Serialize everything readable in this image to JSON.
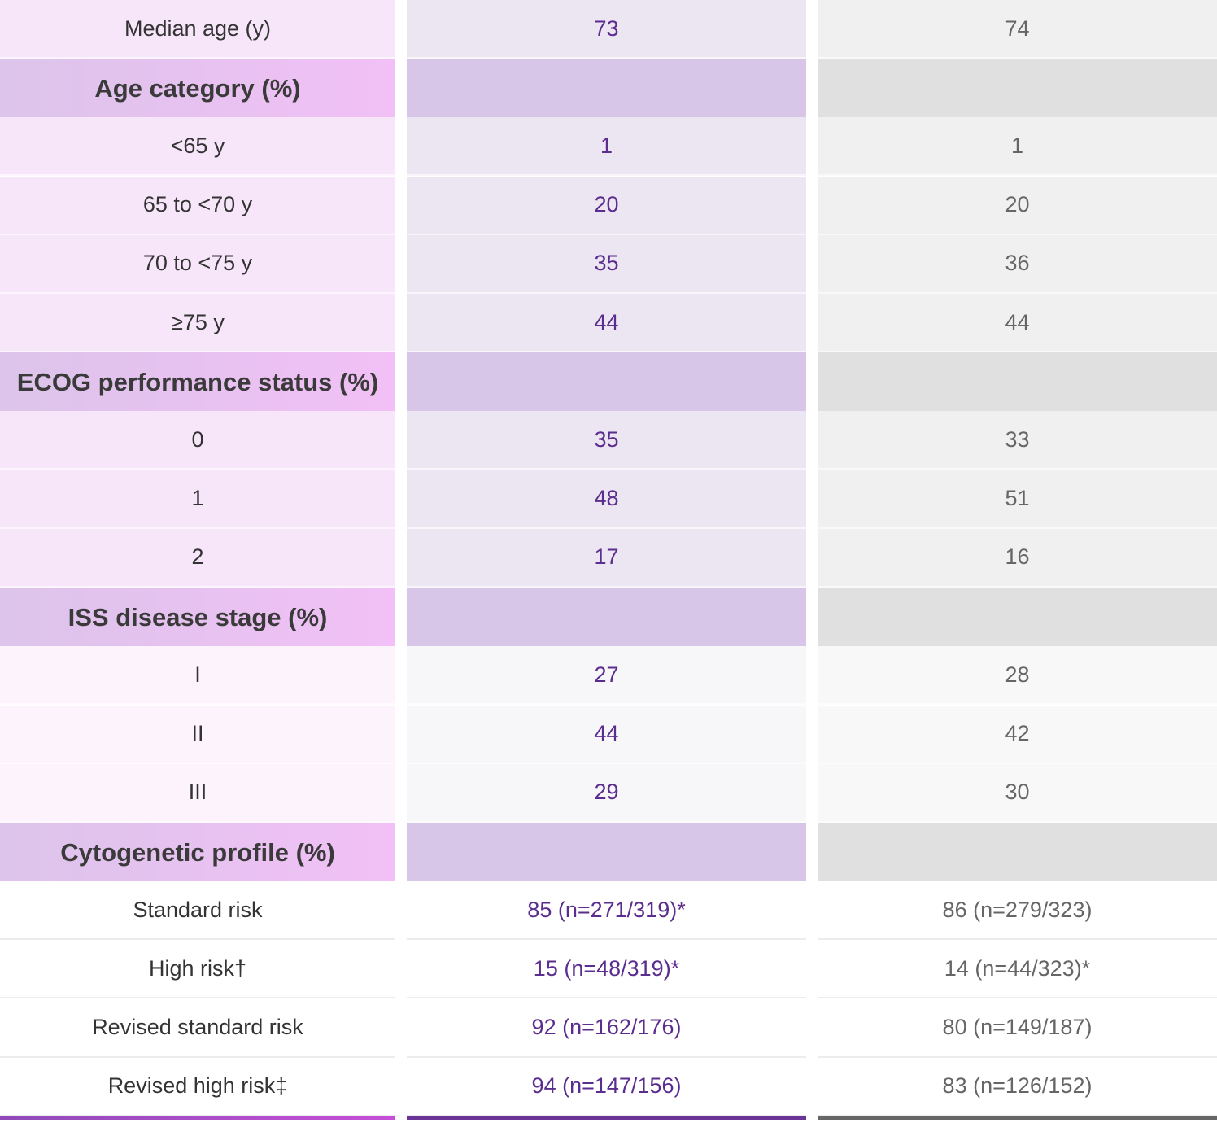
{
  "table": {
    "first_row": {
      "label": "Median age (y)",
      "values": [
        "73",
        "74"
      ]
    },
    "sections": [
      {
        "title": "Age category (%)",
        "rows": [
          {
            "label": "<65 y",
            "values": [
              "1",
              "1"
            ]
          },
          {
            "label": "65 to <70 y",
            "values": [
              "20",
              "20"
            ]
          },
          {
            "label": "70 to <75 y",
            "values": [
              "35",
              "36"
            ]
          },
          {
            "label": "≥75 y",
            "values": [
              "44",
              "44"
            ]
          }
        ]
      },
      {
        "title": "ECOG performance status (%)",
        "rows": [
          {
            "label": "0",
            "values": [
              "35",
              "33"
            ]
          },
          {
            "label": "1",
            "values": [
              "48",
              "51"
            ]
          },
          {
            "label": "2",
            "values": [
              "17",
              "16"
            ]
          }
        ]
      },
      {
        "title": "ISS disease stage (%)",
        "rows": [
          {
            "label": "I",
            "values": [
              "27",
              "28"
            ]
          },
          {
            "label": "II",
            "values": [
              "44",
              "42"
            ]
          },
          {
            "label": "III",
            "values": [
              "29",
              "30"
            ]
          }
        ]
      },
      {
        "title": "Cytogenetic profile (%)",
        "rows": [
          {
            "label": "Standard risk",
            "values": [
              "85 (n=271/319)*",
              "86 (n=279/323)"
            ]
          },
          {
            "label": "High risk†",
            "values": [
              "15 (n=48/319)*",
              "14 (n=44/323)*"
            ]
          },
          {
            "label": "Revised standard risk",
            "values": [
              "92 (n=162/176)",
              "80 (n=149/187)"
            ]
          },
          {
            "label": "Revised high risk‡",
            "values": [
              "94 (n=147/156)",
              "83 (n=126/152)"
            ]
          }
        ]
      }
    ]
  }
}
